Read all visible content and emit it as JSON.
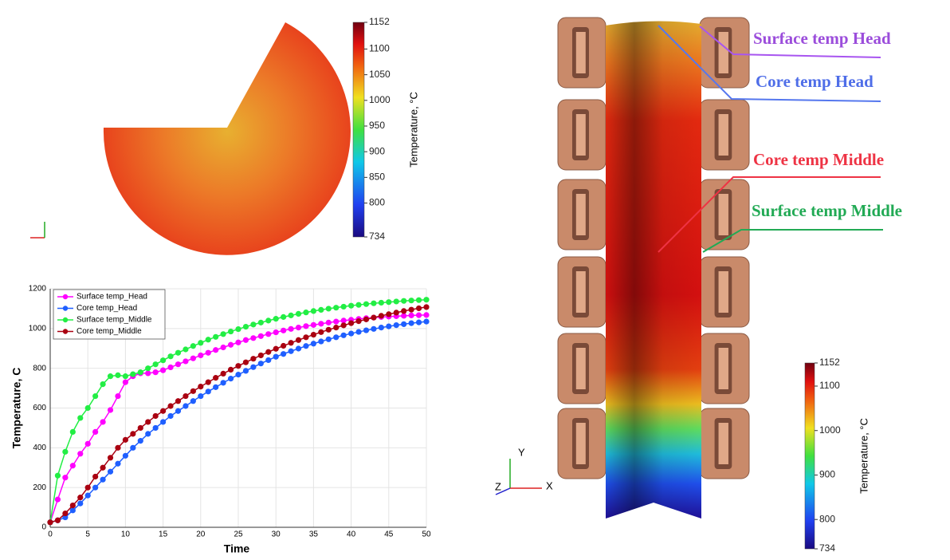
{
  "chart_data": [
    {
      "type": "line",
      "x_label": "Time",
      "y_label": "Temperature, C",
      "x": [
        0,
        1,
        2,
        3,
        4,
        5,
        6,
        7,
        8,
        9,
        10,
        11,
        12,
        13,
        14,
        15,
        16,
        17,
        18,
        19,
        20,
        21,
        22,
        23,
        24,
        25,
        26,
        27,
        28,
        29,
        30,
        31,
        32,
        33,
        34,
        35,
        36,
        37,
        38,
        39,
        40,
        41,
        42,
        43,
        44,
        45,
        46,
        47,
        48,
        49,
        50
      ],
      "series": [
        {
          "name": "Surface temp_Head",
          "color": "#ff00ff",
          "values": [
            25,
            140,
            250,
            310,
            370,
            420,
            480,
            530,
            590,
            660,
            730,
            760,
            775,
            775,
            780,
            790,
            805,
            820,
            835,
            850,
            865,
            878,
            892,
            905,
            918,
            930,
            942,
            952,
            962,
            972,
            981,
            990,
            998,
            1005,
            1012,
            1018,
            1024,
            1030,
            1035,
            1040,
            1044,
            1048,
            1052,
            1055,
            1058,
            1060,
            1062,
            1064,
            1066,
            1067,
            1068
          ]
        },
        {
          "name": "Core temp_Head",
          "color": "#1f5fff",
          "values": [
            25,
            35,
            50,
            85,
            120,
            160,
            200,
            240,
            280,
            320,
            360,
            400,
            435,
            470,
            500,
            530,
            560,
            585,
            610,
            635,
            660,
            683,
            705,
            727,
            748,
            768,
            787,
            806,
            824,
            841,
            858,
            872,
            886,
            899,
            912,
            924,
            935,
            946,
            956,
            966,
            975,
            983,
            991,
            998,
            1005,
            1011,
            1017,
            1022,
            1027,
            1031,
            1035
          ]
        },
        {
          "name": "Surface temp_Middle",
          "color": "#22ee44",
          "values": [
            25,
            260,
            380,
            480,
            550,
            600,
            660,
            720,
            760,
            765,
            760,
            770,
            780,
            800,
            820,
            840,
            860,
            878,
            895,
            912,
            928,
            944,
            958,
            972,
            985,
            997,
            1009,
            1020,
            1030,
            1040,
            1049,
            1058,
            1066,
            1074,
            1081,
            1088,
            1094,
            1100,
            1105,
            1110,
            1115,
            1119,
            1123,
            1127,
            1130,
            1133,
            1136,
            1139,
            1141,
            1143,
            1145
          ]
        },
        {
          "name": "Core temp_Middle",
          "color": "#aa0011",
          "values": [
            25,
            35,
            70,
            110,
            150,
            200,
            255,
            300,
            350,
            400,
            440,
            470,
            500,
            530,
            560,
            585,
            610,
            635,
            660,
            685,
            708,
            730,
            752,
            773,
            793,
            812,
            830,
            848,
            865,
            882,
            898,
            913,
            928,
            942,
            956,
            969,
            982,
            994,
            1005,
            1016,
            1027,
            1037,
            1046,
            1055,
            1064,
            1072,
            1080,
            1088,
            1095,
            1102,
            1108
          ]
        }
      ],
      "xlim": [
        0,
        50
      ],
      "ylim": [
        0,
        1200
      ],
      "xticks": [
        0,
        5,
        10,
        15,
        20,
        25,
        30,
        35,
        40,
        45,
        50
      ],
      "yticks": [
        0,
        200,
        400,
        600,
        800,
        1000,
        1200
      ],
      "grid": true,
      "legend": "upper left"
    }
  ],
  "colorbars": [
    {
      "title": "Temperature, °C",
      "lim": [
        734,
        1152
      ],
      "ticks": [
        734,
        800,
        850,
        900,
        950,
        1000,
        1050,
        1100,
        1152
      ]
    },
    {
      "title": "Temperature, °C",
      "lim": [
        734,
        1152
      ],
      "ticks": [
        734,
        800,
        900,
        1000,
        1100,
        1152
      ]
    }
  ],
  "annotations": [
    "Surface temp Head",
    "Core temp Head",
    "Core temp Middle",
    "Surface temp Middle"
  ],
  "axis_triad": [
    "Y",
    "Z",
    "X"
  ]
}
